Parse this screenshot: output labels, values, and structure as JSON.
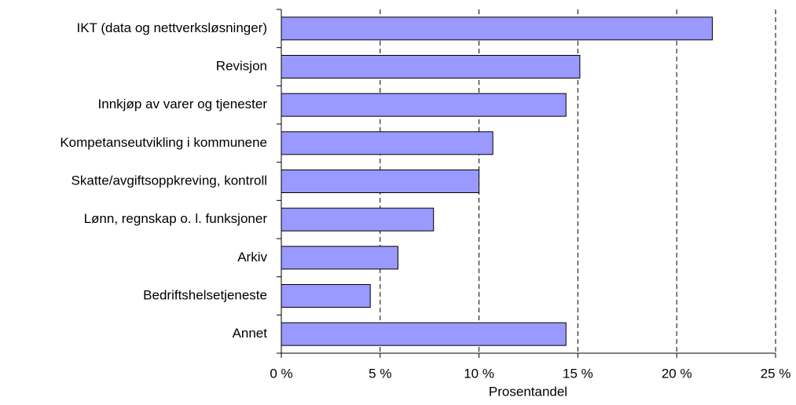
{
  "chart_data": {
    "type": "bar",
    "orientation": "horizontal",
    "categories": [
      "IKT (data og nettverksløsninger)",
      "Revisjon",
      "Innkjøp av varer og tjenester",
      "Kompetanseutvikling i kommunene",
      "Skatte/avgiftsoppkreving, kontroll",
      "Lønn, regnskap o. l. funksjoner ",
      "Arkiv",
      "Bedriftshelsetjeneste",
      "Annet"
    ],
    "values": [
      21.8,
      15.1,
      14.4,
      10.7,
      10.0,
      7.7,
      5.9,
      4.5,
      14.4
    ],
    "color": "#9999ff",
    "x_label": "Prosentandel",
    "xlim": [
      0,
      25
    ],
    "xticks": [
      {
        "value": 0,
        "label": "0 %"
      },
      {
        "value": 5,
        "label": "5 %"
      },
      {
        "value": 10,
        "label": "10 %"
      },
      {
        "value": 15,
        "label": "15 %"
      },
      {
        "value": 20,
        "label": "20 %"
      },
      {
        "value": 25,
        "label": "25 %"
      }
    ],
    "grid": true
  }
}
